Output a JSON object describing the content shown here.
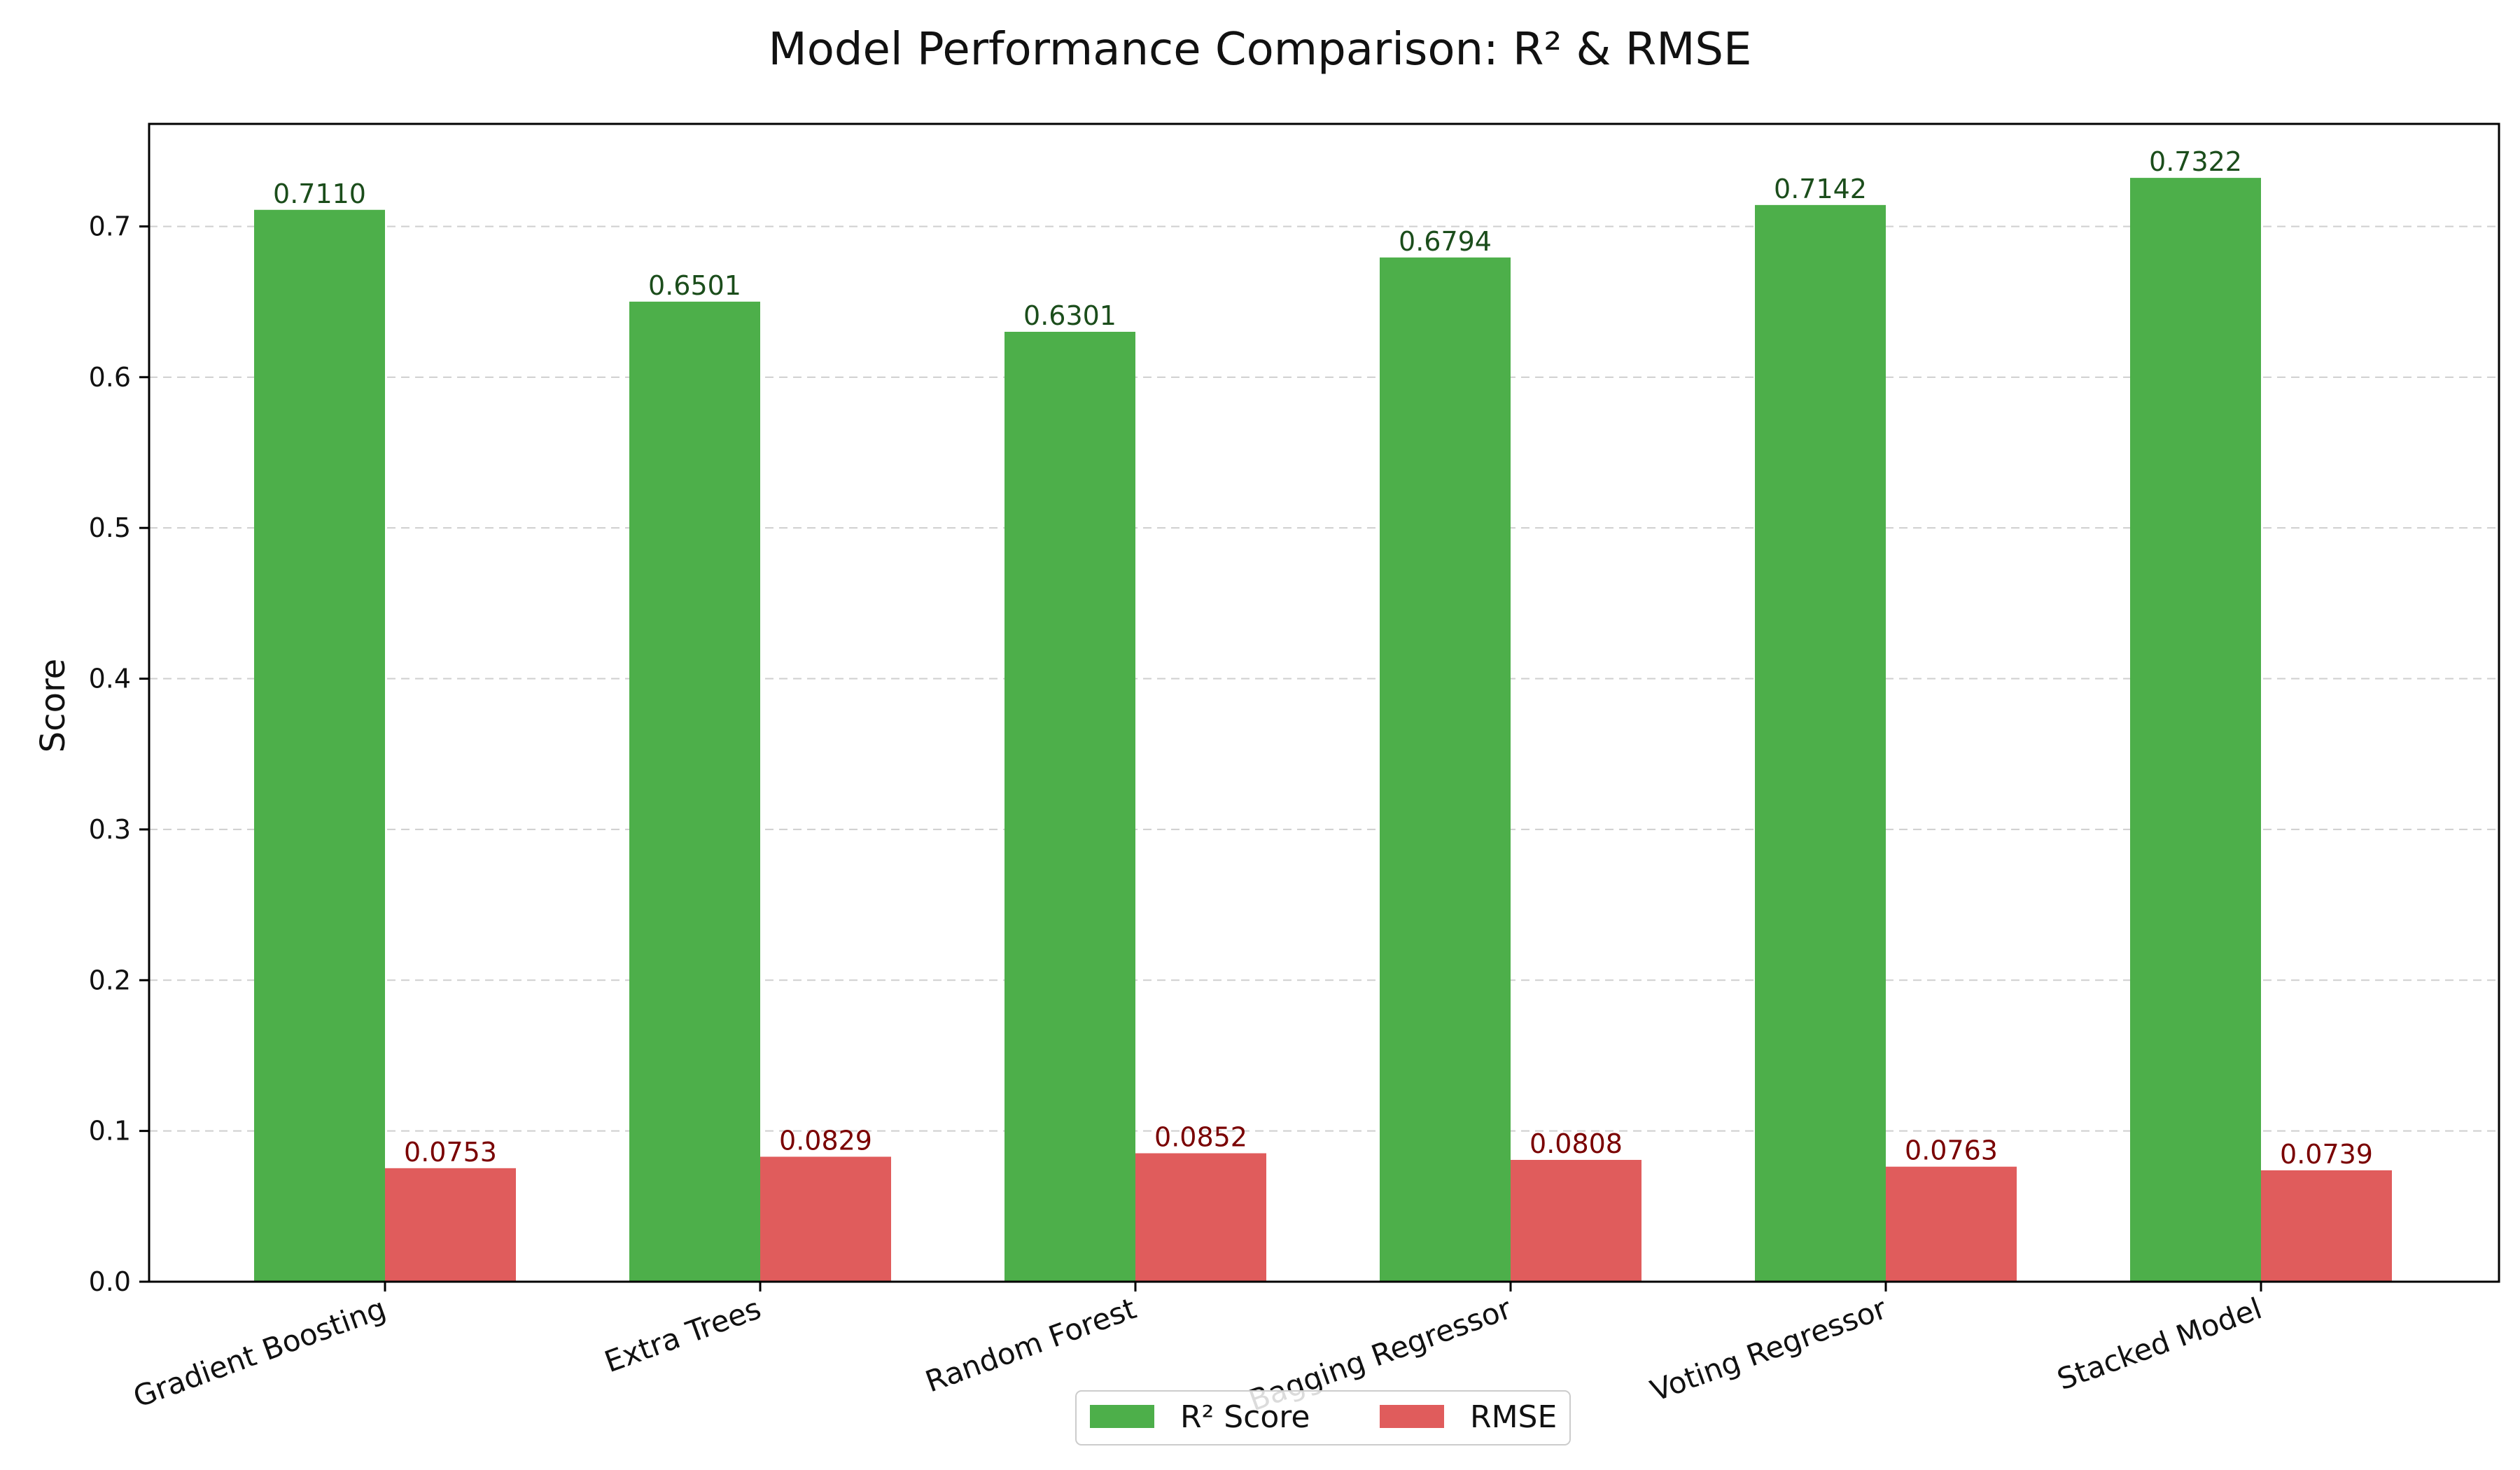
{
  "chart_data": {
    "type": "bar",
    "title": "Model Performance Comparison: R² & RMSE",
    "xlabel": "",
    "ylabel": "Score",
    "ylim": [
      0,
      0.768
    ],
    "yticks": [
      0.0,
      0.1,
      0.2,
      0.3,
      0.4,
      0.5,
      0.6,
      0.7
    ],
    "ytick_labels": [
      "0.0",
      "0.1",
      "0.2",
      "0.3",
      "0.4",
      "0.5",
      "0.6",
      "0.7"
    ],
    "categories": [
      "Gradient Boosting",
      "Extra Trees",
      "Random Forest",
      "Bagging Regressor",
      "Voting Regressor",
      "Stacked Model"
    ],
    "series": [
      {
        "name": "R² Score",
        "values": [
          0.711,
          0.6501,
          0.6301,
          0.6794,
          0.7142,
          0.7322
        ],
        "labels": [
          "0.7110",
          "0.6501",
          "0.6301",
          "0.6794",
          "0.7142",
          "0.7322"
        ],
        "color": "#4daf4a",
        "label_color": "#1b4d1b"
      },
      {
        "name": "RMSE",
        "values": [
          0.0753,
          0.0829,
          0.0852,
          0.0808,
          0.0763,
          0.0739
        ],
        "labels": [
          "0.0753",
          "0.0829",
          "0.0852",
          "0.0808",
          "0.0763",
          "0.0739"
        ],
        "color": "#e05c5c",
        "label_color": "#7a0000"
      }
    ],
    "grid": "y-dashed",
    "legend": "bottom-center"
  }
}
